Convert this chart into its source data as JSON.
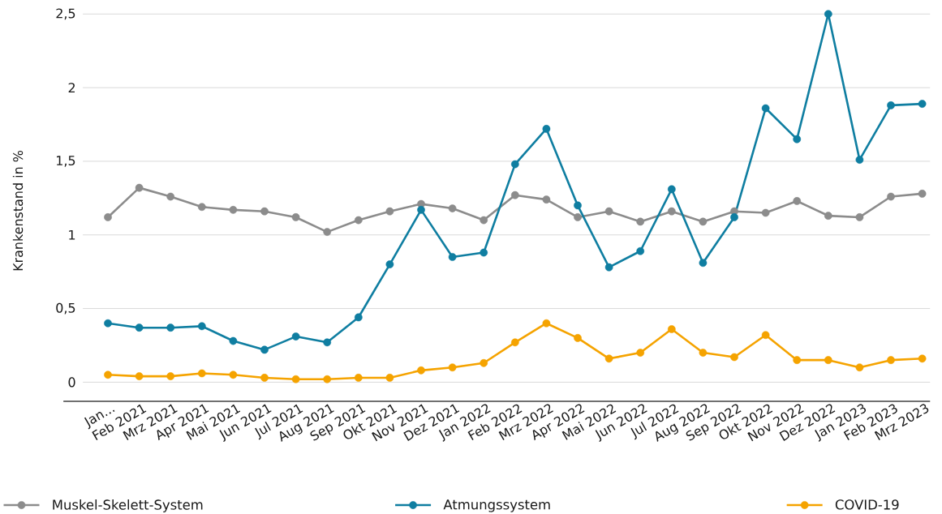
{
  "chart_data": {
    "type": "line",
    "ylabel": "Krankenstand in %",
    "categories": [
      "Jan...",
      "Feb 2021",
      "Mrz 2021",
      "Apr 2021",
      "Mai 2021",
      "Jun 2021",
      "Jul 2021",
      "Aug 2021",
      "Sep 2021",
      "Okt 2021",
      "Nov 2021",
      "Dez 2021",
      "Jan 2022",
      "Feb 2022",
      "Mrz 2022",
      "Apr 2022",
      "Mai 2022",
      "Jun 2022",
      "Jul 2022",
      "Aug 2022",
      "Sep 2022",
      "Okt 2022",
      "Nov 2022",
      "Dez 2022",
      "Jan 2023",
      "Feb 2023",
      "Mrz 2023"
    ],
    "series": [
      {
        "name": "Muskel-Skelett-System",
        "color": "#8c8c8c",
        "values": [
          1.12,
          1.32,
          1.26,
          1.19,
          1.17,
          1.16,
          1.12,
          1.02,
          1.1,
          1.16,
          1.21,
          1.18,
          1.1,
          1.27,
          1.24,
          1.12,
          1.16,
          1.09,
          1.16,
          1.09,
          1.16,
          1.15,
          1.23,
          1.13,
          1.12,
          1.26,
          1.28
        ]
      },
      {
        "name": "Atmungssystem",
        "color": "#0f7ea1",
        "values": [
          0.4,
          0.37,
          0.37,
          0.38,
          0.28,
          0.22,
          0.31,
          0.27,
          0.44,
          0.8,
          1.17,
          0.85,
          0.88,
          1.48,
          1.72,
          1.2,
          0.78,
          0.89,
          1.31,
          0.81,
          1.12,
          1.86,
          1.65,
          2.5,
          1.51,
          1.88,
          1.89
        ]
      },
      {
        "name": "COVID-19",
        "color": "#f5a300",
        "values": [
          0.05,
          0.04,
          0.04,
          0.06,
          0.05,
          0.03,
          0.02,
          0.02,
          0.03,
          0.03,
          0.08,
          0.1,
          0.13,
          0.27,
          0.4,
          0.3,
          0.16,
          0.2,
          0.36,
          0.2,
          0.17,
          0.32,
          0.15,
          0.15,
          0.1,
          0.15,
          0.16
        ]
      }
    ],
    "ylim": [
      -0.13,
      2.5
    ],
    "yticks": [
      0,
      {
        "value": 0.5,
        "label": "0,5"
      },
      1,
      {
        "value": 1.5,
        "label": "1,5"
      },
      2,
      {
        "value": 2.5,
        "label": "2,5"
      }
    ],
    "grid": "y",
    "legend": "bottom",
    "marker": "circle",
    "line_style": "solid"
  }
}
